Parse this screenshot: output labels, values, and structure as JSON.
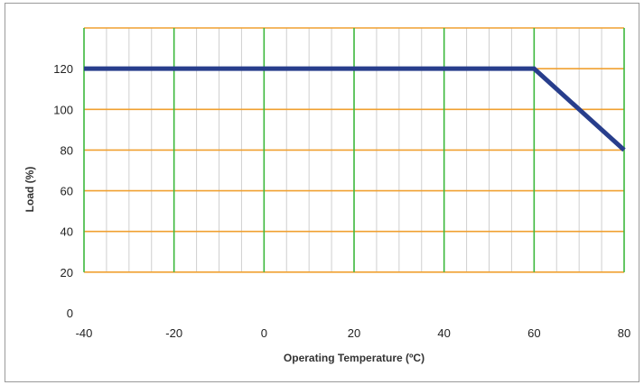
{
  "chart_data": {
    "type": "line",
    "title": "",
    "xlabel": "Operating Temperature (ºC)",
    "ylabel": "Load (%)",
    "xlim": [
      -40,
      80
    ],
    "ylim": [
      0,
      140
    ],
    "x_ticks": [
      -40,
      -20,
      0,
      20,
      40,
      60,
      80
    ],
    "y_ticks": [
      0,
      20,
      40,
      60,
      80,
      100,
      120
    ],
    "x_tick_labels": [
      "-40",
      "-20",
      "0",
      "20",
      "40",
      "60",
      "80"
    ],
    "y_tick_labels": [
      "0",
      "20",
      "40",
      "60",
      "80",
      "100",
      "120"
    ],
    "grid": true,
    "legend": "none",
    "series": [
      {
        "x": [
          -40,
          60,
          80
        ],
        "y": [
          120,
          120,
          80
        ]
      }
    ],
    "colors": {
      "line": "#283e8c",
      "major_x_grid": "#3cb83c",
      "minor_x_grid": "#cfcfcf",
      "y_grid": "#f0a030"
    }
  }
}
